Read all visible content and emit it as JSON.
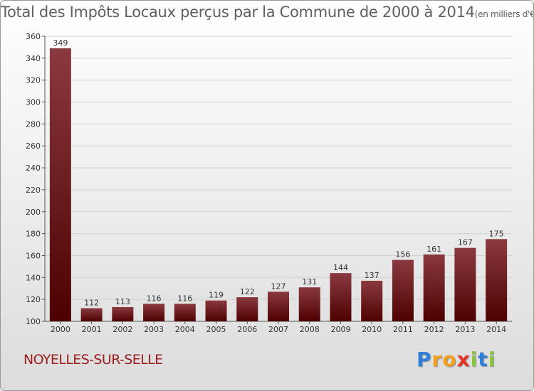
{
  "chart_data": {
    "type": "bar",
    "title": "Total des Impôts Locaux perçus par la Commune de 2000 à 2014",
    "title_unit": "(en milliers d'€)",
    "categories": [
      "2000",
      "2001",
      "2002",
      "2003",
      "2004",
      "2005",
      "2006",
      "2007",
      "2008",
      "2009",
      "2010",
      "2011",
      "2012",
      "2013",
      "2014"
    ],
    "values": [
      349,
      112,
      113,
      116,
      116,
      119,
      122,
      127,
      131,
      144,
      137,
      156,
      161,
      167,
      175
    ],
    "ylim": [
      100,
      360
    ],
    "yticks": [
      100,
      120,
      140,
      160,
      180,
      200,
      220,
      240,
      260,
      280,
      300,
      320,
      340,
      360
    ],
    "grid": true,
    "xlabel": "",
    "ylabel": ""
  },
  "footer": {
    "commune": "NOYELLES-SUR-SELLE",
    "brand_letters": [
      {
        "char": "P",
        "color": "#2f7fd8"
      },
      {
        "char": "r",
        "color": "#f2a11f"
      },
      {
        "char": "o",
        "color": "#f2a11f"
      },
      {
        "char": "x",
        "color": "#e8332a"
      },
      {
        "char": "i",
        "color": "#8cc63f"
      },
      {
        "char": "t",
        "color": "#2f7fd8"
      },
      {
        "char": "i",
        "color": "#8cc63f"
      }
    ]
  },
  "colors": {
    "bar_top": "#8a3a3f",
    "bar_bottom": "#4e0000",
    "title": "#606060",
    "commune": "#9b1c1c"
  }
}
